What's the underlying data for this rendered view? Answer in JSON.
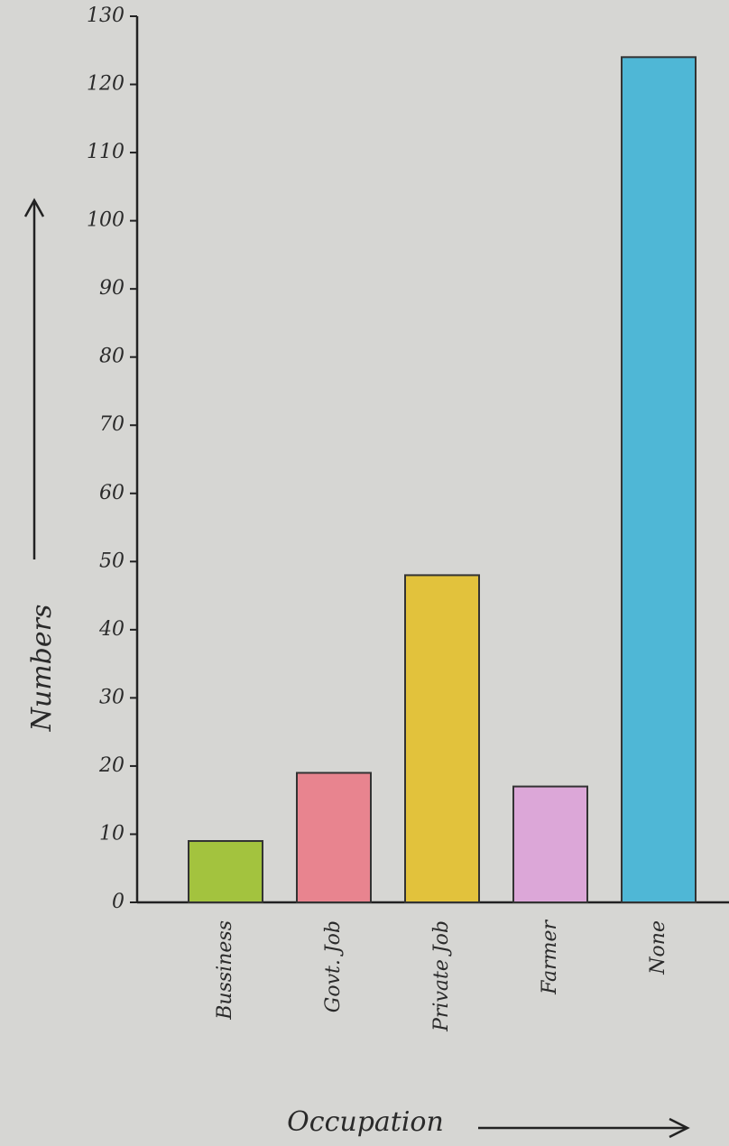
{
  "chart_data": {
    "type": "bar",
    "x_label": "Occupation",
    "y_label": "Numbers",
    "categories": [
      "Bussiness",
      "Govt. Job",
      "Private Job",
      "Farmer",
      "None"
    ],
    "values": [
      9,
      19,
      48,
      17,
      124
    ],
    "colors": [
      "#a3c33e",
      "#e8848f",
      "#e2c23c",
      "#dca7d8",
      "#4fb7d6"
    ],
    "ylim": [
      0,
      130
    ],
    "yticks": [
      0,
      10,
      20,
      30,
      40,
      50,
      60,
      70,
      80,
      90,
      100,
      110,
      120,
      130
    ],
    "grid": false
  }
}
